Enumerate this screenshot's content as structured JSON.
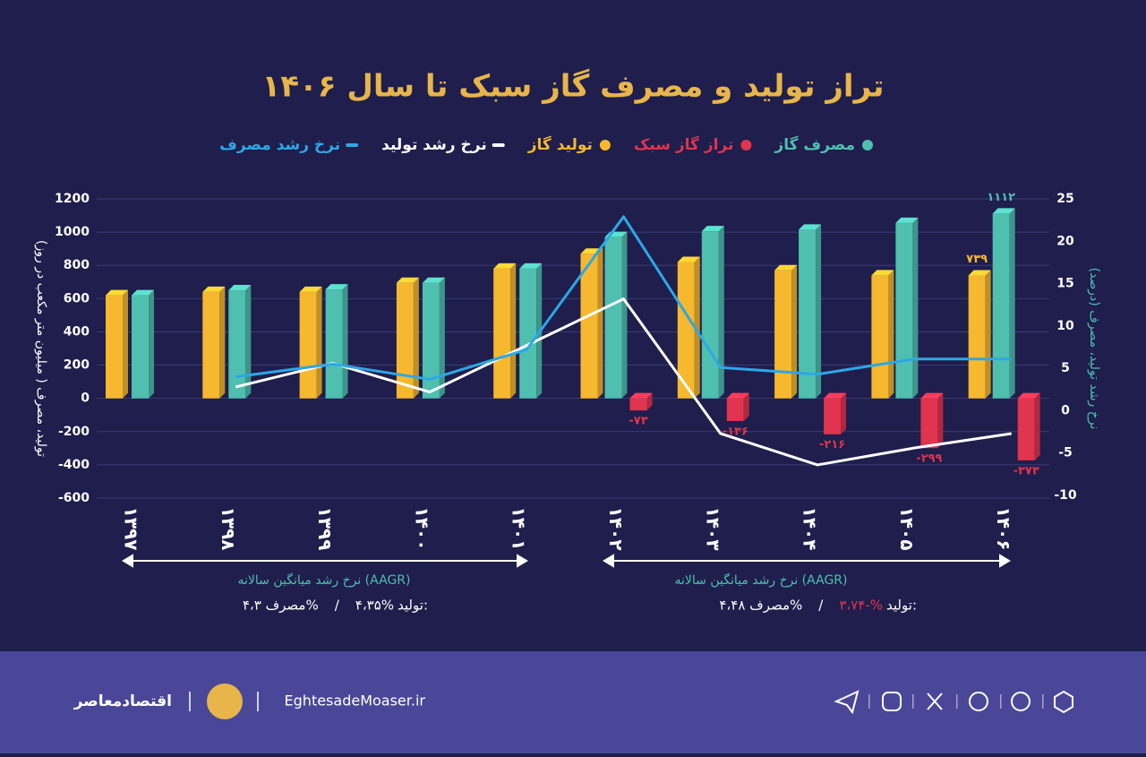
{
  "chart_data": {
    "type": "bar",
    "title": "تراز تولید و مصرف گاز سبک تا سال ۱۴۰۶",
    "y_label": "تولید، مصرف ( میلیون متر مکعب در روز)",
    "y2_label": "نرخ رشد تولید، مصرف (درصد)",
    "categories": [
      "۱۳۹۷",
      "۱۳۹۸",
      "۱۳۹۹",
      "۱۴۰۰",
      "۱۴۰۱",
      "۱۴۰۲",
      "۱۴۰۳",
      "۱۴۰۴",
      "۱۴۰۵",
      "۱۴۰۶"
    ],
    "ylim": [
      -600,
      1200
    ],
    "yticks": [
      -600,
      -400,
      -200,
      0,
      200,
      400,
      600,
      800,
      1000,
      1200
    ],
    "y2lim": [
      -10,
      25
    ],
    "y2ticks": [
      -10,
      -5,
      0,
      5,
      10,
      15,
      20,
      25
    ],
    "grid": true,
    "series": [
      {
        "name": "مصرف گاز",
        "type": "bar",
        "color": "#4fbfb0",
        "values": [
          620,
          650,
          655,
          695,
          780,
          970,
          1005,
          1015,
          1055,
          1112
        ],
        "value_labels": [
          null,
          null,
          null,
          null,
          null,
          null,
          null,
          null,
          null,
          "۱۱۱۲"
        ]
      },
      {
        "name": "تراز گاز سبک",
        "type": "bar",
        "color": "#e0344f",
        "values": [
          null,
          null,
          null,
          null,
          null,
          -73,
          -136,
          -216,
          -299,
          -373
        ],
        "value_labels": [
          null,
          null,
          null,
          null,
          null,
          "-۷۳",
          "-۱۳۶",
          "-۲۱۶",
          "-۲۹۹",
          "-۳۷۳"
        ]
      },
      {
        "name": "تولید گاز",
        "type": "bar",
        "color": "#f5b82e",
        "values": [
          620,
          640,
          640,
          695,
          780,
          870,
          820,
          770,
          740,
          739
        ],
        "value_labels": [
          null,
          null,
          null,
          null,
          null,
          null,
          null,
          null,
          null,
          "۷۳۹"
        ]
      },
      {
        "name": "نرخ رشد تولید",
        "type": "line",
        "axis": "y2",
        "color": "#ffffff",
        "values": [
          null,
          2.8,
          5.6,
          2.2,
          7.7,
          13.2,
          -2.7,
          -6.4,
          -4.4,
          -2.7
        ]
      },
      {
        "name": "نرخ رشد مصرف",
        "type": "line",
        "axis": "y2",
        "color": "#2ea7e6",
        "values": [
          null,
          4.0,
          5.5,
          3.7,
          7.2,
          22.9,
          5.1,
          4.3,
          6.1,
          6.1
        ]
      }
    ],
    "annotations": [
      {
        "label": "نرخ رشد میانگین سالانه (AAGR)",
        "production_label": "تولید:",
        "production_value": "۴،۳۵%",
        "separator": "/",
        "consumption": "مصرف ۴،۳%"
      },
      {
        "label": "نرخ رشد میانگین سالانه (AAGR)",
        "production_label": "تولید:",
        "production_value": "۳،۷۴-%",
        "separator": "/",
        "consumption": "مصرف ۴،۴۸%"
      }
    ]
  },
  "footer": {
    "brand": "اقتصادمعاصر",
    "site": "EghtesadeMoaser.ir"
  }
}
